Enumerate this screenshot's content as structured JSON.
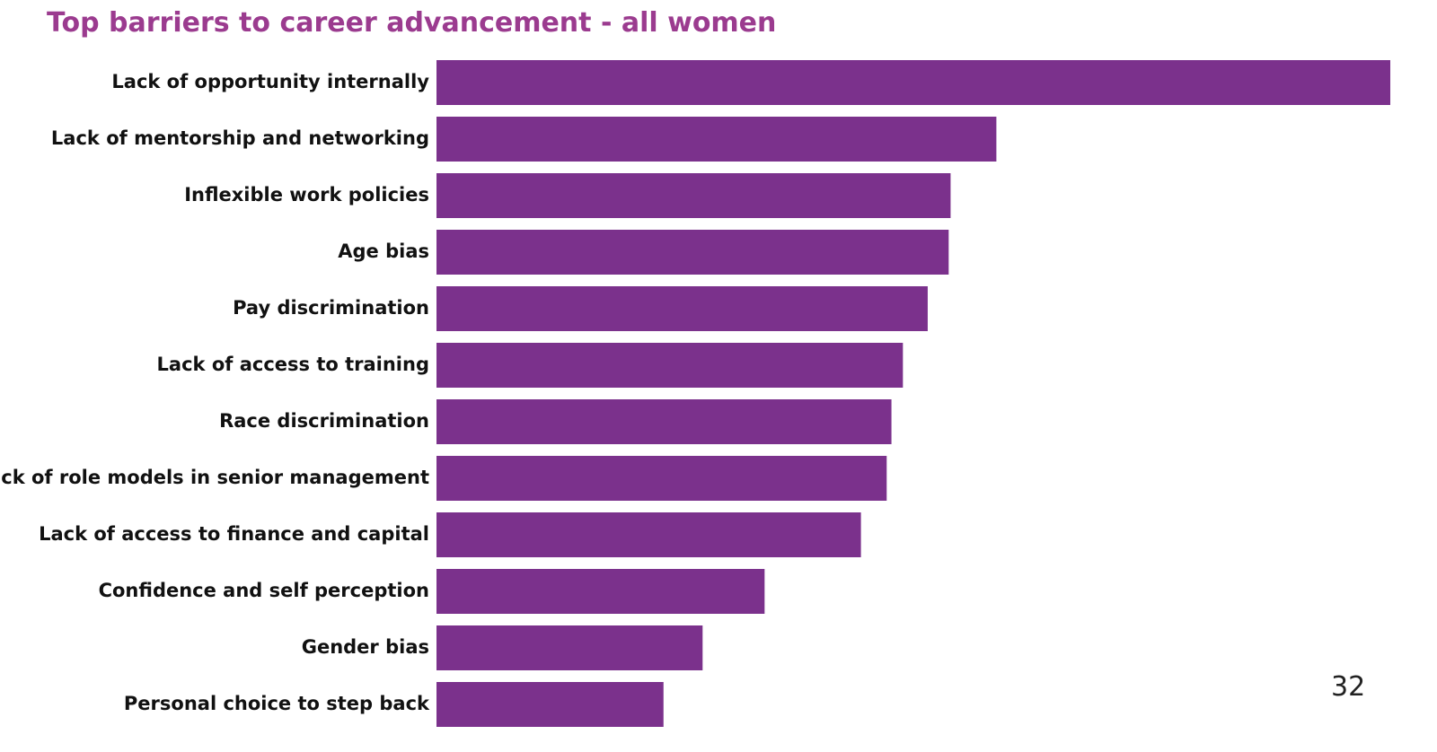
{
  "chart_data": {
    "type": "bar",
    "orientation": "horizontal",
    "title": "Top barriers to career advancement - all women",
    "categories": [
      "Lack of opportunity internally",
      "Lack of mentorship and networking",
      "Inflexible work policies",
      "Age bias",
      "Pay discrimination",
      "Lack of access to training",
      "Race discrimination",
      "Lack of role models in senior management",
      "Lack of access to finance and capital",
      "Confidence and self perception",
      "Gender bias",
      "Personal choice to step back"
    ],
    "values": [
      100,
      58.7,
      53.9,
      53.7,
      51.5,
      48.9,
      47.7,
      47.2,
      44.5,
      34.4,
      27.9,
      23.8
    ],
    "value_unit": "relative to largest bar (no axis shown)",
    "xlim": [
      0,
      100
    ],
    "grid": false,
    "legend": "none",
    "bar_color": "#7b318c"
  },
  "page_number": "32",
  "colors": {
    "title": "#9b3b8f",
    "bar": "#7b318c",
    "label": "#111111"
  }
}
